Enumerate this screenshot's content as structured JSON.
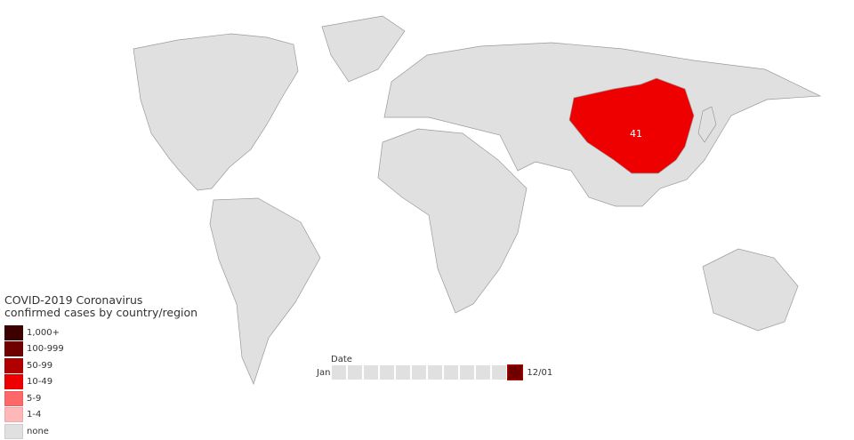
{
  "map": {
    "highlighted_region": {
      "name": "China",
      "value": "41",
      "color": "#ee0000"
    },
    "land_color": "#e0e0e0"
  },
  "legend": {
    "title_line1": "COVID-2019 Coronavirus",
    "title_line2": "confirmed cases by country/region",
    "items": [
      {
        "label": "1,000+",
        "color": "#3d0000"
      },
      {
        "label": "100-999",
        "color": "#700000"
      },
      {
        "label": "50-99",
        "color": "#b00000"
      },
      {
        "label": "10-49",
        "color": "#ee0000"
      },
      {
        "label": "5-9",
        "color": "#ff6868"
      },
      {
        "label": "1-4",
        "color": "#ffb8b8"
      },
      {
        "label": "none",
        "color": "#e0e0e0"
      }
    ]
  },
  "timeline": {
    "title": "Date",
    "start_label": "Jan",
    "end_label": "12/01",
    "steps": 12,
    "active_step": 12,
    "active_color": "#700000"
  }
}
